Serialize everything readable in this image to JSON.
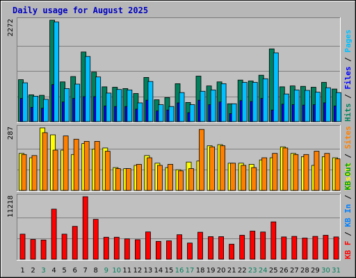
{
  "chart_data": {
    "type": "bar",
    "title": "Daily usage for August 2025",
    "x": [
      "1",
      "2",
      "3",
      "4",
      "5",
      "6",
      "7",
      "8",
      "9",
      "10",
      "11",
      "12",
      "13",
      "14",
      "15",
      "16",
      "17",
      "18",
      "19",
      "20",
      "21",
      "22",
      "23",
      "24",
      "25",
      "26",
      "27",
      "28",
      "29",
      "30",
      "31"
    ],
    "weekend_days": [
      "3",
      "9",
      "10",
      "16",
      "17",
      "23",
      "24",
      "30",
      "31"
    ],
    "panels": [
      {
        "id": "hits_files_pages",
        "ymax_label": "2272",
        "ymax": 2272,
        "legend": [
          {
            "text": "Hits",
            "color": "#00805c"
          },
          {
            "text": "/",
            "color": "#000000"
          },
          {
            "text": "Files",
            "color": "#0000ff"
          },
          {
            "text": "/",
            "color": "#000000"
          },
          {
            "text": "Pages",
            "color": "#00c0ff"
          }
        ],
        "series": [
          {
            "name": "Hits",
            "color": "#00805c",
            "values": [
              940,
              600,
              590,
              2272,
              890,
              1010,
              1560,
              1110,
              780,
              770,
              740,
              630,
              990,
              490,
              540,
              850,
              430,
              1020,
              800,
              890,
              400,
              930,
              910,
              1040,
              1630,
              780,
              800,
              790,
              770,
              880,
              730
            ]
          },
          {
            "name": "Files",
            "color": "#0000ff",
            "values": [
              520,
              320,
              300,
              830,
              440,
              520,
              560,
              560,
              350,
              340,
              340,
              280,
              480,
              240,
              260,
              420,
              200,
              480,
              380,
              440,
              180,
              470,
              450,
              520,
              260,
              390,
              380,
              370,
              380,
              420,
              350
            ]
          },
          {
            "name": "Pages",
            "color": "#00c0ff",
            "values": [
              870,
              570,
              500,
              2230,
              740,
              840,
              1460,
              1000,
              640,
              720,
              710,
              420,
              900,
              380,
              340,
              650,
              380,
              680,
              710,
              850,
              400,
              880,
              880,
              960,
              1540,
              620,
              710,
              700,
              660,
              760,
              650
            ]
          }
        ]
      },
      {
        "id": "visits_sites",
        "ymax_label": "287",
        "ymax": 287,
        "legend": [
          {
            "text": "Visits",
            "color": "#ffff00"
          },
          {
            "text": "/",
            "color": "#000000"
          },
          {
            "text": "Sites",
            "color": "#ff8000"
          }
        ],
        "series": [
          {
            "name": "Visits",
            "color": "#ffff00",
            "values": [
              170,
              150,
              287,
              255,
              185,
              165,
              215,
              190,
              195,
              105,
              100,
              115,
              160,
              125,
              105,
              95,
              130,
              135,
              205,
              210,
              125,
              125,
              120,
              140,
              150,
              200,
              170,
              155,
              115,
              155,
              150
            ]
          },
          {
            "name": "Sites",
            "color": "#ff8000",
            "values": [
              165,
              160,
              265,
              185,
              250,
              235,
              225,
              225,
              180,
              100,
              100,
              120,
              150,
              115,
              120,
              90,
              100,
              280,
              200,
              205,
              125,
              115,
              105,
              150,
              170,
              195,
              165,
              165,
              180,
              170,
              145
            ]
          }
        ]
      },
      {
        "id": "kbytes",
        "ymax_label": "11218",
        "ymax": 11218,
        "legend": [
          {
            "text": "KB F",
            "color": "#ff0000"
          },
          {
            "text": "/",
            "color": "#000000"
          },
          {
            "text": "KB In",
            "color": "#0080ff"
          },
          {
            "text": "/",
            "color": "#000000"
          },
          {
            "text": "KB Out",
            "color": "#00a000"
          }
        ],
        "series": [
          {
            "name": "KB F",
            "color": "#ff0000",
            "values": [
              4500,
              3550,
              3450,
              8990,
              4500,
              5890,
              11218,
              7150,
              3950,
              3950,
              3650,
              3500,
              4900,
              3200,
              3300,
              4400,
              2900,
              4850,
              4050,
              4050,
              2700,
              4300,
              5050,
              4880,
              6700,
              4000,
              4100,
              3800,
              4100,
              4300,
              4000
            ]
          }
        ]
      }
    ]
  }
}
